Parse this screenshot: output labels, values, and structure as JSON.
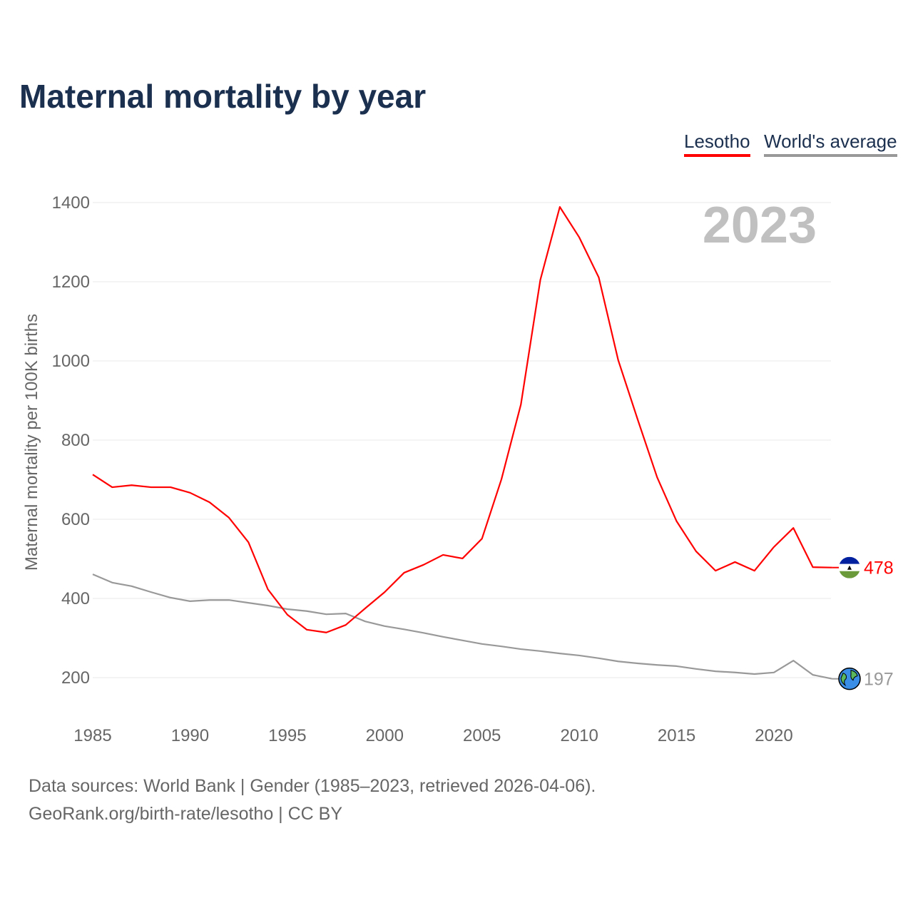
{
  "title": "Maternal mortality by year",
  "footer": {
    "line1": "Data sources: World Bank | Gender (1985–2023, retrieved 2026-04-06).",
    "line2": "GeoRank.org/birth-rate/lesotho | CC BY"
  },
  "chart_data": {
    "type": "line",
    "title": "Maternal mortality by year",
    "ylabel": "Maternal mortality per 100K births",
    "xlabel": "",
    "year_label": "2023",
    "xlim": [
      1985,
      2023
    ],
    "ylim": [
      200,
      1400
    ],
    "xticks": [
      1985,
      1990,
      1995,
      2000,
      2005,
      2010,
      2015,
      2020
    ],
    "yticks": [
      200,
      400,
      600,
      800,
      1000,
      1200,
      1400
    ],
    "grid": true,
    "legend_placement": "top-right",
    "x": [
      1985,
      1986,
      1987,
      1988,
      1989,
      1990,
      1991,
      1992,
      1993,
      1994,
      1995,
      1996,
      1997,
      1998,
      1999,
      2000,
      2001,
      2002,
      2003,
      2004,
      2005,
      2006,
      2007,
      2008,
      2009,
      2010,
      2011,
      2012,
      2013,
      2014,
      2015,
      2016,
      2017,
      2018,
      2019,
      2020,
      2021,
      2022,
      2023
    ],
    "series": [
      {
        "name": "Lesotho",
        "color": "#ff0000",
        "end_label": "478",
        "values": [
          713,
          681,
          686,
          681,
          681,
          667,
          643,
          604,
          542,
          423,
          359,
          321,
          314,
          333,
          375,
          416,
          465,
          485,
          510,
          501,
          551,
          701,
          890,
          1205,
          1389,
          1312,
          1211,
          1002,
          852,
          706,
          595,
          519,
          470,
          492,
          470,
          530,
          578,
          479,
          478
        ]
      },
      {
        "name": "World's average",
        "color": "#999999",
        "end_label": "197",
        "values": [
          461,
          440,
          431,
          416,
          402,
          393,
          396,
          396,
          389,
          382,
          373,
          368,
          360,
          362,
          342,
          330,
          322,
          313,
          303,
          294,
          285,
          279,
          272,
          267,
          261,
          256,
          249,
          241,
          236,
          232,
          229,
          222,
          216,
          213,
          209,
          213,
          243,
          207,
          197
        ]
      }
    ]
  }
}
